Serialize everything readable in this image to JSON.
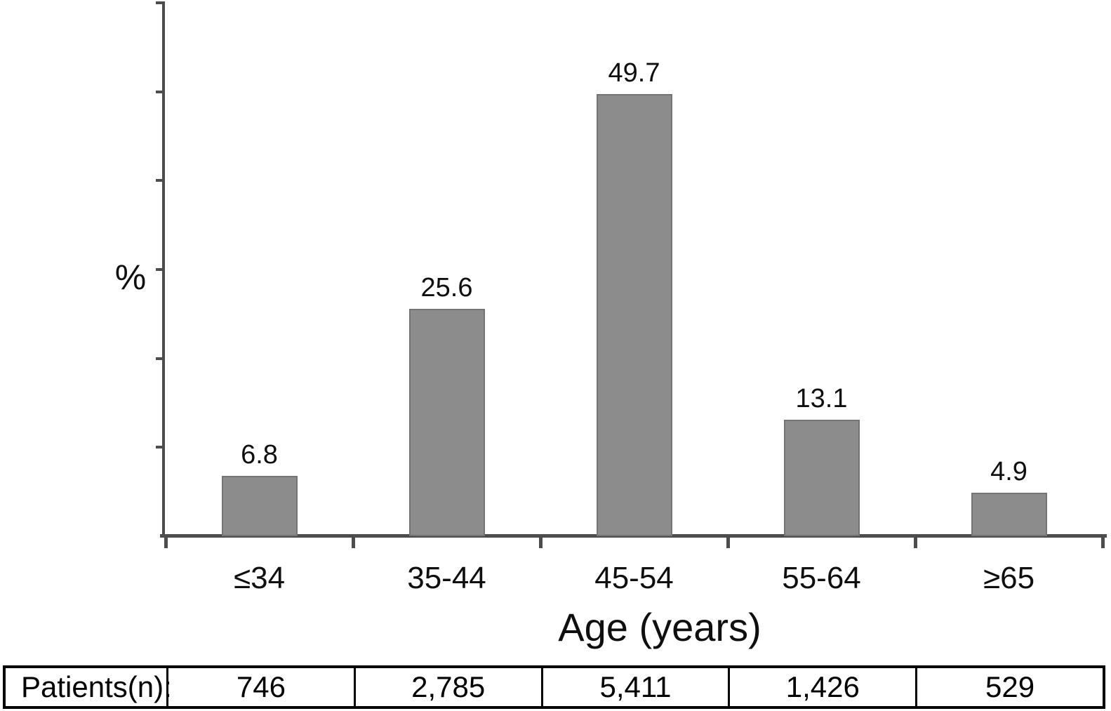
{
  "chart_data": {
    "type": "bar",
    "title": "",
    "categories": [
      "≤34",
      "35-44",
      "45-54",
      "55-64",
      "≥65"
    ],
    "values": [
      6.8,
      25.6,
      49.7,
      13.1,
      4.9
    ],
    "value_labels": [
      "6.8",
      "25.6",
      "49.7",
      "13.1",
      "4.9"
    ],
    "xlabel": "Age (years)",
    "ylabel": "%",
    "ylim": [
      0,
      60
    ],
    "ytick_step": 10,
    "grid": false,
    "legend": "none",
    "bar_color": "#8c8c8c",
    "bar_border_color": "#747474",
    "axis_color": "#4d4d4d",
    "text_color": "#0f0f0f"
  },
  "table": {
    "row_label": "Patients(n):",
    "values": [
      "746",
      "2,785",
      "5,411",
      "1,426",
      "529"
    ],
    "border_color": "#000000"
  }
}
